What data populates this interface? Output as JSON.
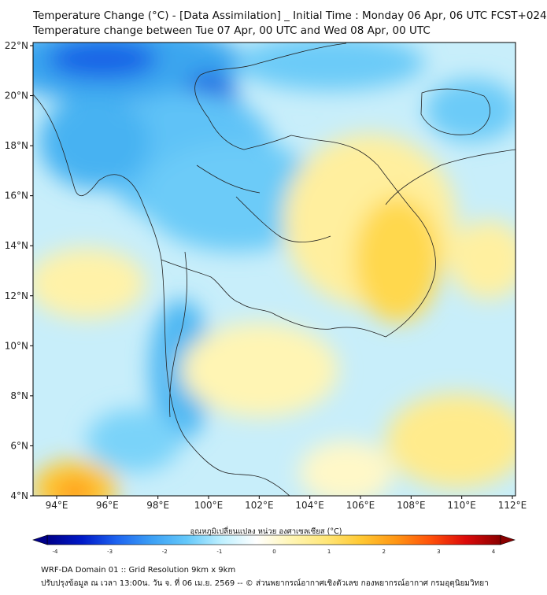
{
  "title_line1": "Temperature Change (°C) - [Data Assimilation] _ Initial Time : Monday 06 Apr, 06 UTC FCST+024",
  "title_line2": "Temperature change between Tue 07 Apr, 00 UTC and Wed 08 Apr, 00 UTC",
  "lat_labels": [
    "22°N",
    "20°N",
    "18°N",
    "16°N",
    "14°N",
    "12°N",
    "10°N",
    "8°N",
    "6°N",
    "4°N"
  ],
  "lon_labels": [
    "94°E",
    "96°E",
    "98°E",
    "100°E",
    "102°E",
    "104°E",
    "106°E",
    "108°E",
    "110°E",
    "112°E"
  ],
  "colorbar": {
    "title": "อุณหภูมิเปลี่ยนแปลง หน่วย องศาเซลเซียส (°C)",
    "ticks": [
      "-4",
      "-3",
      "-2",
      "-1",
      "0",
      "1",
      "2",
      "3",
      "4"
    ],
    "colors": [
      "#00008a",
      "#0019c8",
      "#1e64f0",
      "#3ca0f5",
      "#64c8fa",
      "#bef0ff",
      "#ffffff",
      "#fff5b4",
      "#ffe678",
      "#ffc832",
      "#ff9614",
      "#ff500a",
      "#dc0a0a",
      "#8a0000"
    ]
  },
  "footer_line1": "WRF-DA Domain 01 :: Grid Resolution 9km x 9km",
  "footer_line2": "ปรับปรุงข้อมูล ณ เวลา 13:00น. วัน จ. ที่ 06 เม.ย. 2569 -- © ส่วนพยากรณ์อากาศเชิงตัวเลข กองพยากรณ์อากาศ กรมอุตุนิยมวิทยา"
}
